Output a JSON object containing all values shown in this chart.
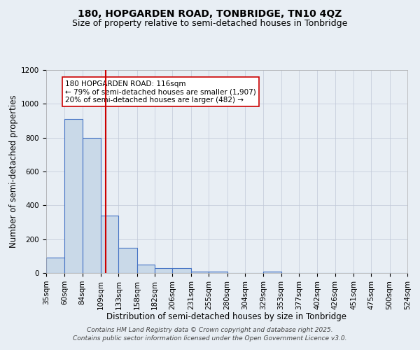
{
  "title": "180, HOPGARDEN ROAD, TONBRIDGE, TN10 4QZ",
  "subtitle": "Size of property relative to semi-detached houses in Tonbridge",
  "xlabel": "Distribution of semi-detached houses by size in Tonbridge",
  "ylabel": "Number of semi-detached properties",
  "bin_edges": [
    35,
    60,
    84,
    109,
    133,
    158,
    182,
    206,
    231,
    255,
    280,
    304,
    329,
    353,
    377,
    402,
    426,
    451,
    475,
    500,
    524
  ],
  "heights": [
    90,
    910,
    800,
    340,
    150,
    50,
    30,
    30,
    10,
    10,
    0,
    0,
    10,
    0,
    0,
    0,
    0,
    0,
    0,
    0
  ],
  "bar_facecolor": "#c9d9e8",
  "bar_edgecolor": "#4472c4",
  "grid_color": "#c0c8d8",
  "bg_color": "#e8eef4",
  "property_size": 116,
  "red_line_color": "#cc0000",
  "annotation_line1": "180 HOPGARDEN ROAD: 116sqm",
  "annotation_line2": "← 79% of semi-detached houses are smaller (1,907)",
  "annotation_line3": "20% of semi-detached houses are larger (482) →",
  "annotation_box_color": "#ffffff",
  "annotation_border_color": "#cc0000",
  "ylim": [
    0,
    1200
  ],
  "yticks": [
    0,
    200,
    400,
    600,
    800,
    1000,
    1200
  ],
  "footer_line1": "Contains HM Land Registry data © Crown copyright and database right 2025.",
  "footer_line2": "Contains public sector information licensed under the Open Government Licence v3.0.",
  "title_fontsize": 10,
  "subtitle_fontsize": 9,
  "axis_label_fontsize": 8.5,
  "tick_fontsize": 7.5,
  "annotation_fontsize": 7.5,
  "footer_fontsize": 6.5
}
